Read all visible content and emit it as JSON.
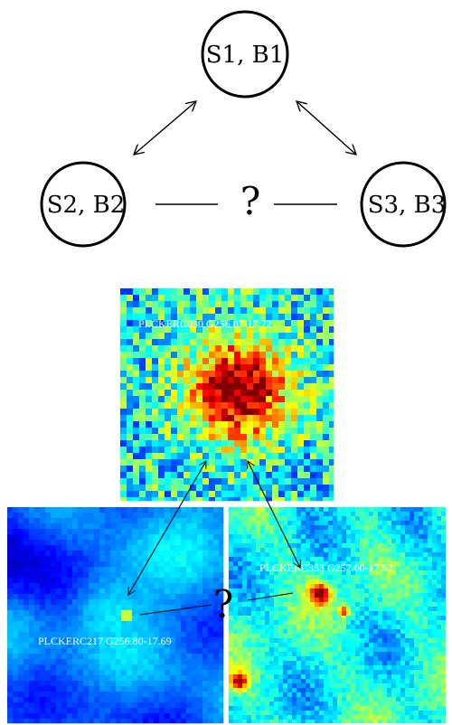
{
  "diagram": {
    "nodes": [
      {
        "id": "n1",
        "label": "S1, B1"
      },
      {
        "id": "n2",
        "label": "S2, B2"
      },
      {
        "id": "n3",
        "label": "S3, B3"
      }
    ],
    "question_mark": "?"
  },
  "maps": [
    {
      "id": "top",
      "title": "PLCKERC030 G256.87-17.72"
    },
    {
      "id": "left",
      "title": "PLCKERC217 G256.80-17.69"
    },
    {
      "id": "right",
      "title": "PLCKERC353 G257.00-17.52"
    }
  ],
  "map_question_mark": "?"
}
